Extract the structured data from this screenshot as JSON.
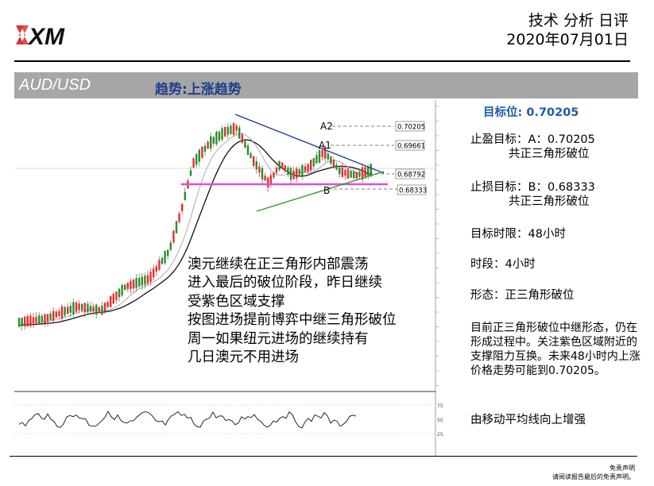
{
  "header": {
    "brand": "XM",
    "title": "技术 分析 日评",
    "date": "2020年07月01日"
  },
  "bar": {
    "pair": "AUD/USD",
    "trend": "趋势:上涨趋势"
  },
  "chart": {
    "labels": {
      "a2": "A2",
      "a1": "A1",
      "b": "B",
      "box_a2": "0.70205",
      "box_a1": "0.69661",
      "box_current": "0.68792",
      "box_b": "0.68333"
    },
    "overlay_lines": [
      "澳元继续在正三角形内部震荡",
      "进入最后的破位阶段，昨日继续",
      "受紫色区域支撑",
      "按图进场提前博弈中继三角形破位",
      "周一如果纽元进场的继续持有",
      "几日澳元不用进场"
    ],
    "osc_levels": {
      "upper": "75",
      "mid": "50",
      "lower": "25"
    }
  },
  "chart_data": {
    "type": "candlestick",
    "price_levels": {
      "A2": 0.70205,
      "A1": 0.69661,
      "current": 0.68792,
      "B": 0.68333
    },
    "colors": {
      "up": "#2e8b2e",
      "down": "#e0302f",
      "trendline_upper": "#1f3c9c",
      "trendline_lower": "#2e9e2e",
      "support_zone": "#e04ed8"
    }
  },
  "side": {
    "target_label": "目标位: 0.70205",
    "tp_line1": "止盈目标：A：0.70205",
    "tp_line2": "共正三角形破位",
    "sl_line1": "止损目标：B：0.68333",
    "sl_line2": "共正三角形破位",
    "timelimit": "目标时限：48小时",
    "timeframe": "时段：4小时",
    "pattern": "形态：正三角形破位",
    "analysis": "目前正三角形破位中继形态，仍在形成过程中。关注紫色区域附近的支撑阻力互换。未来48小时内上涨价格走势可能到0.70205。",
    "ma_note": "由移动平均线向上增强"
  },
  "footer": {
    "line1": "免责声明",
    "line2": "请阅读报告最后的免责声明。"
  }
}
